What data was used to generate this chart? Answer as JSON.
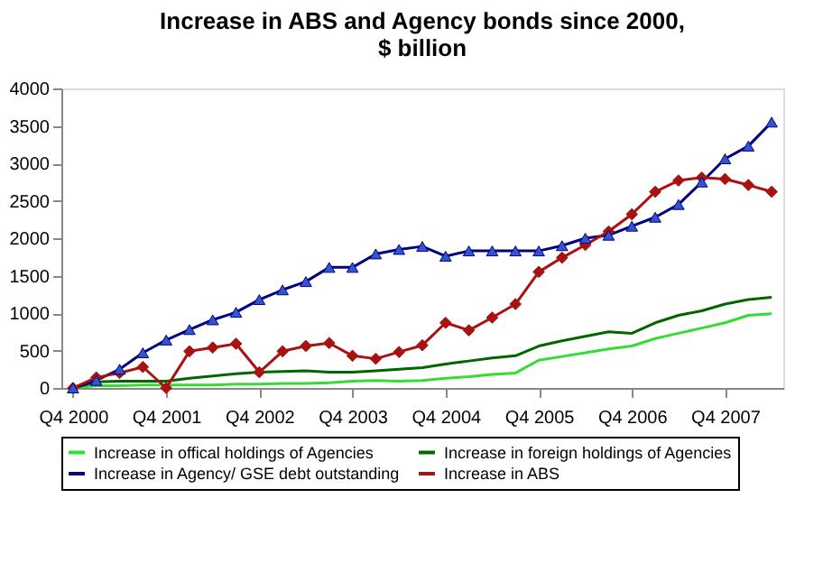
{
  "chart_data": {
    "type": "line",
    "title": "Increase in ABS and Agency bonds since 2000, $ billion",
    "categories": [
      "Q4 2000",
      null,
      null,
      null,
      "Q4 2001",
      null,
      null,
      null,
      "Q4 2002",
      null,
      null,
      null,
      "Q4 2003",
      null,
      null,
      null,
      "Q4 2004",
      null,
      null,
      null,
      "Q4 2005",
      null,
      null,
      null,
      "Q4 2006",
      null,
      null,
      null,
      "Q4 2007",
      null,
      null
    ],
    "series": [
      {
        "name": "Increase in offical holdings of Agencies",
        "color": "#33dd33",
        "marker": "none",
        "values": [
          0,
          30,
          30,
          40,
          40,
          40,
          40,
          50,
          50,
          60,
          60,
          70,
          90,
          100,
          90,
          100,
          130,
          150,
          180,
          200,
          370,
          420,
          470,
          520,
          560,
          660,
          730,
          800,
          870,
          970,
          990
        ]
      },
      {
        "name": "Increase in foreign holdings of Agencies",
        "color": "#006600",
        "marker": "none",
        "values": [
          0,
          80,
          90,
          90,
          90,
          130,
          160,
          190,
          210,
          220,
          230,
          210,
          210,
          230,
          250,
          270,
          320,
          360,
          400,
          430,
          560,
          630,
          690,
          750,
          730,
          870,
          970,
          1030,
          1120,
          1180,
          1210
        ]
      },
      {
        "name": "Increase in Agency/ GSE debt outstanding",
        "color": "#000080",
        "marker": "triangle",
        "values": [
          0,
          100,
          250,
          470,
          640,
          780,
          910,
          1010,
          1180,
          1310,
          1420,
          1610,
          1610,
          1790,
          1850,
          1890,
          1760,
          1830,
          1830,
          1830,
          1830,
          1900,
          2000,
          2040,
          2160,
          2280,
          2450,
          2750,
          3060,
          3230,
          3550
        ]
      },
      {
        "name": "Increase in ABS",
        "color": "#aa1111",
        "marker": "diamond",
        "values": [
          0,
          140,
          200,
          280,
          0,
          490,
          540,
          590,
          210,
          490,
          560,
          600,
          430,
          390,
          480,
          570,
          870,
          770,
          940,
          1120,
          1550,
          1740,
          1910,
          2090,
          2320,
          2620,
          2770,
          2810,
          2790,
          2710,
          2620
        ]
      }
    ],
    "ylim": [
      0,
      4000
    ],
    "yticks": [
      0,
      500,
      1000,
      1500,
      2000,
      2500,
      3000,
      3500,
      4000
    ],
    "grid": false,
    "legend": "bottom"
  }
}
